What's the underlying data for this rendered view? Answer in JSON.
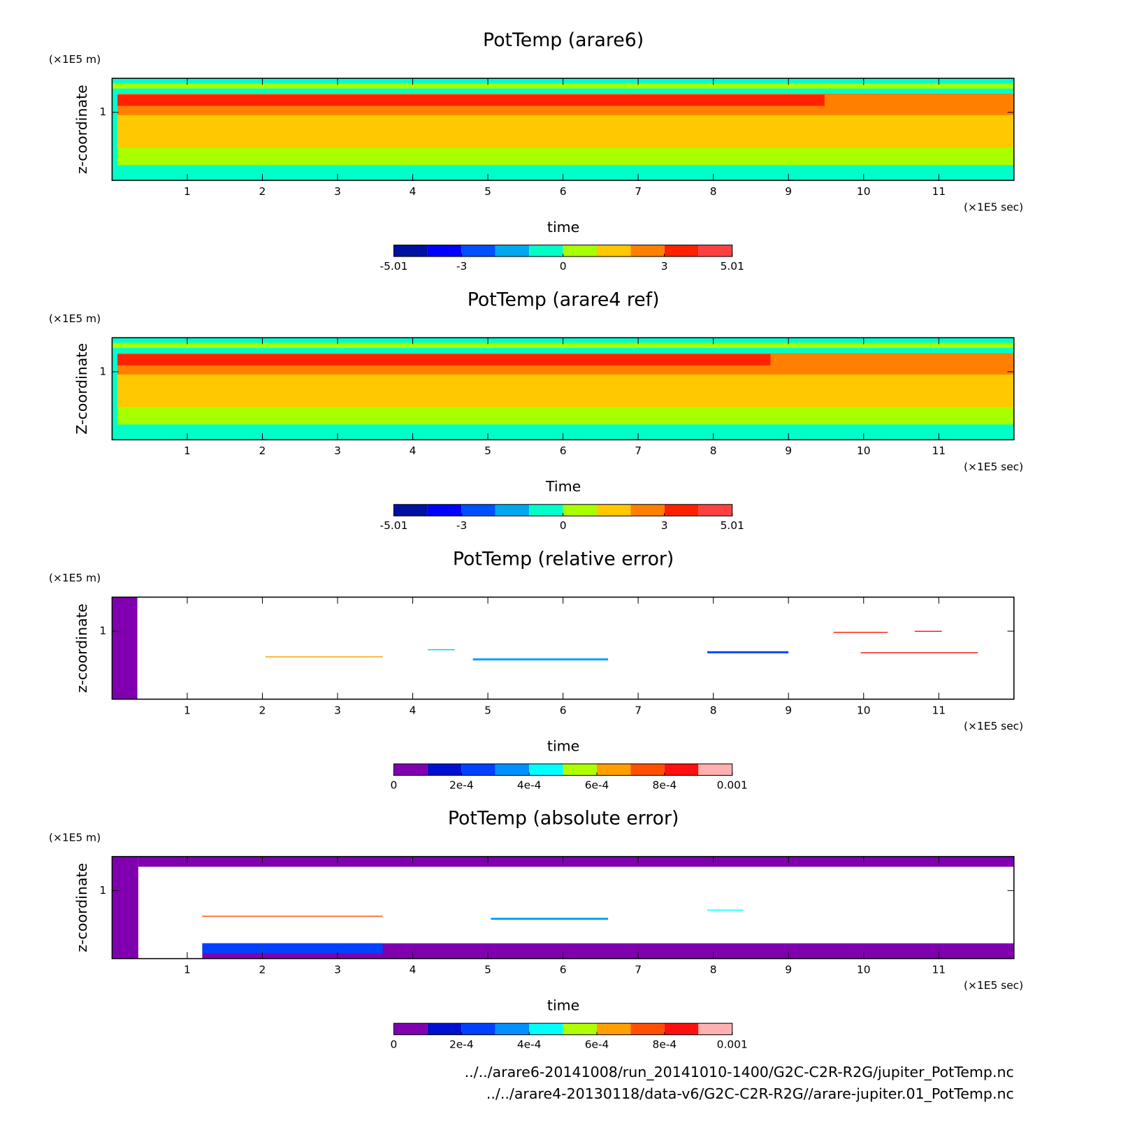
{
  "chart_data": [
    {
      "type": "contour",
      "title": "PotTemp (arare6)",
      "xlabel": "time",
      "ylabel": "z-coordinate",
      "x_unit": "(×1E5 sec)",
      "y_unit": "(×1E5 m)",
      "xlim": [
        0,
        12
      ],
      "ylim": [
        0,
        1.5
      ],
      "xticks": [
        1,
        2,
        3,
        4,
        5,
        6,
        7,
        8,
        9,
        10,
        11
      ],
      "yticks": [
        1
      ],
      "colorbar": {
        "lim": [
          -5.01,
          5.01
        ],
        "ticks": [
          -5.01,
          -3,
          0,
          3,
          5.01
        ],
        "colors": [
          "#0010a0",
          "#0000ff",
          "#0050ff",
          "#00a8f0",
          "#00ffc8",
          "#a8ff00",
          "#ffc800",
          "#ff8000",
          "#ff2000",
          "#ff4040"
        ]
      }
    },
    {
      "type": "contour",
      "title": "PotTemp (arare4 ref)",
      "xlabel": "Time",
      "ylabel": "Z-coordinate",
      "x_unit": "(×1E5 sec)",
      "y_unit": "(×1E5 m)",
      "xlim": [
        0,
        12
      ],
      "ylim": [
        0,
        1.5
      ],
      "xticks": [
        1,
        2,
        3,
        4,
        5,
        6,
        7,
        8,
        9,
        10,
        11
      ],
      "yticks": [
        1
      ],
      "colorbar": {
        "lim": [
          -5.01,
          5.01
        ],
        "ticks": [
          -5.01,
          -3,
          0,
          3,
          5.01
        ],
        "colors": [
          "#0010a0",
          "#0000ff",
          "#0050ff",
          "#00a8f0",
          "#00ffc8",
          "#a8ff00",
          "#ffc800",
          "#ff8000",
          "#ff2000",
          "#ff4040"
        ]
      }
    },
    {
      "type": "contour",
      "title": "PotTemp (relative error)",
      "xlabel": "time",
      "ylabel": "z-coordinate",
      "x_unit": "(×1E5 sec)",
      "y_unit": "(×1E5 m)",
      "xlim": [
        0,
        12
      ],
      "ylim": [
        0,
        1.5
      ],
      "xticks": [
        1,
        2,
        3,
        4,
        5,
        6,
        7,
        8,
        9,
        10,
        11
      ],
      "yticks": [
        1
      ],
      "colorbar": {
        "lim": [
          0,
          0.001
        ],
        "ticks": [
          0,
          {
            "value": 0.0002,
            "label": "2e-4"
          },
          {
            "value": 0.0004,
            "label": "4e-4"
          },
          {
            "value": 0.0006,
            "label": "6e-4"
          },
          {
            "value": 0.0008,
            "label": "8e-4"
          },
          0.001
        ],
        "colors": [
          "#8000b0",
          "#0010d0",
          "#0040ff",
          "#0090ff",
          "#00ffff",
          "#b0ff00",
          "#ffa000",
          "#ff5000",
          "#ff1010",
          "#ffb0b0"
        ]
      }
    },
    {
      "type": "contour",
      "title": "PotTemp (absolute error)",
      "xlabel": "time",
      "ylabel": "z-coordinate",
      "x_unit": "(×1E5 sec)",
      "y_unit": "(×1E5 m)",
      "xlim": [
        0,
        12
      ],
      "ylim": [
        0,
        1.5
      ],
      "xticks": [
        1,
        2,
        3,
        4,
        5,
        6,
        7,
        8,
        9,
        10,
        11
      ],
      "yticks": [
        1
      ],
      "colorbar": {
        "lim": [
          0,
          0.001
        ],
        "ticks": [
          0,
          {
            "value": 0.0002,
            "label": "2e-4"
          },
          {
            "value": 0.0004,
            "label": "4e-4"
          },
          {
            "value": 0.0006,
            "label": "6e-4"
          },
          {
            "value": 0.0008,
            "label": "8e-4"
          },
          0.001
        ],
        "colors": [
          "#8000b0",
          "#0010d0",
          "#0040ff",
          "#0090ff",
          "#00ffff",
          "#b0ff00",
          "#ffa000",
          "#ff5000",
          "#ff1010",
          "#ffb0b0"
        ]
      }
    }
  ],
  "footer": [
    "../../arare6-20141008/run_20141010-1400/G2C-C2R-R2G/jupiter_PotTemp.nc",
    "../../arare4-20130118/data-v6/G2C-C2R-R2G//arare-jupiter.01_PotTemp.nc"
  ]
}
